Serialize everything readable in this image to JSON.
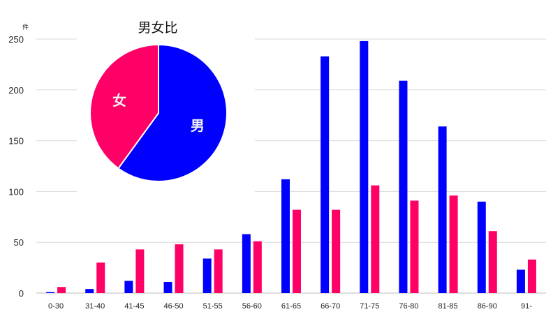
{
  "chart_data": [
    {
      "type": "bar",
      "ylabel": "件",
      "ylim": [
        0,
        250
      ],
      "yticks": [
        0,
        50,
        100,
        150,
        200,
        250
      ],
      "grid": true,
      "categories": [
        "0-30",
        "31-40",
        "41-45",
        "46-50",
        "51-55",
        "56-60",
        "61-65",
        "66-70",
        "71-75",
        "76-80",
        "81-85",
        "86-90",
        "91-"
      ],
      "series": [
        {
          "color": "#0000ff",
          "values": [
            1,
            4,
            12,
            11,
            34,
            58,
            112,
            233,
            248,
            209,
            164,
            90,
            23
          ]
        },
        {
          "color": "#ff0066",
          "values": [
            6,
            30,
            43,
            48,
            43,
            51,
            82,
            82,
            106,
            91,
            96,
            61,
            33
          ]
        }
      ]
    },
    {
      "type": "pie",
      "title": "男女比",
      "slices": [
        {
          "label": "男",
          "value": 60,
          "color": "#0000ff"
        },
        {
          "label": "女",
          "value": 40,
          "color": "#ff0066"
        }
      ]
    }
  ]
}
